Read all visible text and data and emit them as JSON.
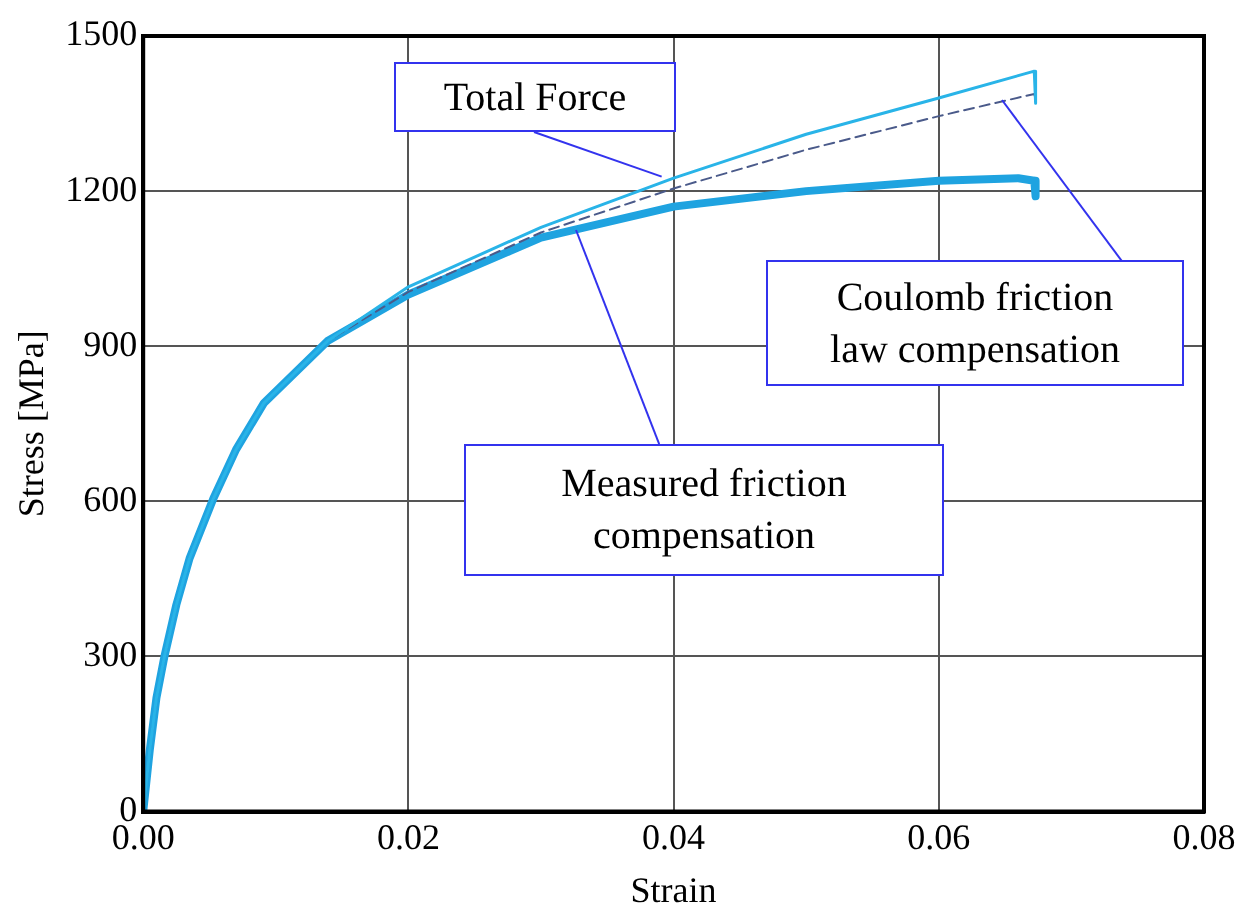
{
  "chart_data": {
    "type": "line",
    "xlabel": "Strain",
    "ylabel": "Stress [MPa]",
    "xlim": [
      0,
      0.08
    ],
    "xticks": [
      {
        "value": 0,
        "label": "0.00"
      },
      {
        "value": 0.02,
        "label": "0.02"
      },
      {
        "value": 0.04,
        "label": "0.04"
      },
      {
        "value": 0.06,
        "label": "0.06"
      },
      {
        "value": 0.08,
        "label": "0.08"
      }
    ],
    "ylim": [
      0,
      1500
    ],
    "yticks": [
      0,
      300,
      600,
      900,
      1200,
      1500
    ],
    "grid": true,
    "legend": false,
    "marker": "none",
    "series": [
      {
        "color": "#29b4e8",
        "line_style": "solid",
        "x": [
          0,
          0.0005,
          0.001,
          0.0016,
          0.0025,
          0.0035,
          0.0053,
          0.007,
          0.0091,
          0.0139,
          0.02,
          0.03,
          0.04,
          0.05,
          0.06,
          0.0672,
          0.0673
        ],
        "values": [
          0,
          120,
          220,
          300,
          400,
          490,
          606,
          700,
          790,
          910,
          1015,
          1130,
          1225,
          1310,
          1380,
          1432,
          1370
        ]
      },
      {
        "color": "#4a5a8a",
        "line_style": "dashed",
        "x": [
          0,
          0.0005,
          0.001,
          0.0016,
          0.0025,
          0.0035,
          0.0053,
          0.007,
          0.0091,
          0.0139,
          0.02,
          0.03,
          0.04,
          0.05,
          0.06,
          0.0672,
          0.0673
        ],
        "values": [
          0,
          120,
          220,
          300,
          400,
          490,
          606,
          700,
          790,
          910,
          1005,
          1120,
          1205,
          1280,
          1345,
          1388,
          1375
        ]
      },
      {
        "color": "#1fa3e0",
        "line_style": "solid",
        "x": [
          0,
          0.0005,
          0.001,
          0.0016,
          0.0025,
          0.0035,
          0.0053,
          0.007,
          0.0091,
          0.0139,
          0.02,
          0.03,
          0.04,
          0.05,
          0.06,
          0.066,
          0.0672,
          0.0673
        ],
        "values": [
          0,
          120,
          220,
          300,
          400,
          490,
          606,
          700,
          790,
          910,
          1000,
          1110,
          1170,
          1200,
          1220,
          1225,
          1220,
          1190
        ]
      }
    ],
    "annotations": [
      {
        "text": "Total Force",
        "x": 0.0391,
        "y": 1228
      },
      {
        "text": "Coulomb friction\nlaw compensation",
        "x": 0.0647,
        "y": 1376
      },
      {
        "text": "Measured friction\ncompensation",
        "x": 0.0327,
        "y": 1125
      }
    ]
  }
}
